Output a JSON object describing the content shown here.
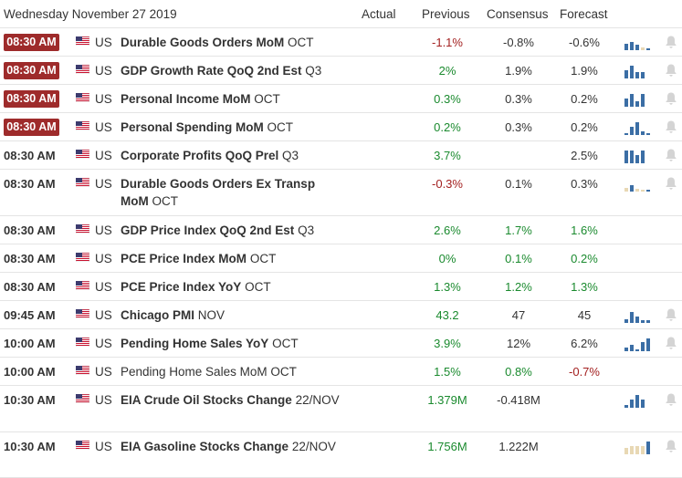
{
  "header": {
    "date": "Wednesday November 27 2019",
    "actual": "Actual",
    "previous": "Previous",
    "consensus": "Consensus",
    "forecast": "Forecast"
  },
  "colors": {
    "badge": "#9e2b2b",
    "up": "#1a8a2e",
    "down": "#a32020",
    "bar": "#3b6ea5",
    "bar_light": "#e8d8b4"
  },
  "rows": [
    {
      "time": "08:30 AM",
      "country": "US",
      "event_bold": "Durable Goods Orders MoM",
      "event_suffix": "OCT",
      "actual": "",
      "previous": "-1.1%",
      "consensus": "-0.8%",
      "forecast": "-0.6%"
    },
    {
      "time": "08:30 AM",
      "country": "US",
      "event_bold": "GDP Growth Rate QoQ 2nd Est",
      "event_suffix": "Q3",
      "actual": "",
      "previous": "2%",
      "consensus": "1.9%",
      "forecast": "1.9%"
    },
    {
      "time": "08:30 AM",
      "country": "US",
      "event_bold": "Personal Income MoM",
      "event_suffix": "OCT",
      "actual": "",
      "previous": "0.3%",
      "consensus": "0.3%",
      "forecast": "0.2%"
    },
    {
      "time": "08:30 AM",
      "country": "US",
      "event_bold": "Personal Spending MoM",
      "event_suffix": "OCT",
      "actual": "",
      "previous": "0.2%",
      "consensus": "0.3%",
      "forecast": "0.2%"
    },
    {
      "time": "08:30 AM",
      "country": "US",
      "event_bold": "Corporate Profits QoQ Prel",
      "event_suffix": "Q3",
      "actual": "",
      "previous": "3.7%",
      "consensus": "",
      "forecast": "2.5%"
    },
    {
      "time": "08:30 AM",
      "country": "US",
      "event_bold": "Durable Goods Orders Ex Transp MoM",
      "event_suffix": "OCT",
      "actual": "",
      "previous": "-0.3%",
      "consensus": "0.1%",
      "forecast": "0.3%"
    },
    {
      "time": "08:30 AM",
      "country": "US",
      "event_bold": "GDP Price Index QoQ 2nd Est",
      "event_suffix": "Q3",
      "actual": "",
      "previous": "2.6%",
      "consensus": "1.7%",
      "forecast": "1.6%"
    },
    {
      "time": "08:30 AM",
      "country": "US",
      "event_bold": "PCE Price Index MoM",
      "event_suffix": "OCT",
      "actual": "",
      "previous": "0%",
      "consensus": "0.1%",
      "forecast": "0.2%"
    },
    {
      "time": "08:30 AM",
      "country": "US",
      "event_bold": "PCE Price Index YoY",
      "event_suffix": "OCT",
      "actual": "",
      "previous": "1.3%",
      "consensus": "1.2%",
      "forecast": "1.3%"
    },
    {
      "time": "09:45 AM",
      "country": "US",
      "event_bold": "Chicago PMI",
      "event_suffix": "NOV",
      "actual": "",
      "previous": "43.2",
      "consensus": "47",
      "forecast": "45"
    },
    {
      "time": "10:00 AM",
      "country": "US",
      "event_bold": "Pending Home Sales YoY",
      "event_suffix": "OCT",
      "actual": "",
      "previous": "3.9%",
      "consensus": "12%",
      "forecast": "6.2%"
    },
    {
      "time": "10:00 AM",
      "country": "US",
      "event_bold": "",
      "event_suffix": "Pending Home Sales MoM OCT",
      "actual": "",
      "previous": "1.5%",
      "consensus": "0.8%",
      "forecast": "-0.7%"
    },
    {
      "time": "10:30 AM",
      "country": "US",
      "event_bold": "EIA Crude Oil Stocks Change",
      "event_suffix": "22/NOV",
      "actual": "",
      "previous": "1.379M",
      "consensus": "-0.418M",
      "forecast": ""
    },
    {
      "time": "10:30 AM",
      "country": "US",
      "event_bold": "EIA Gasoline Stocks Change",
      "event_suffix": "22/NOV",
      "actual": "",
      "previous": "1.756M",
      "consensus": "1.222M",
      "forecast": ""
    }
  ]
}
